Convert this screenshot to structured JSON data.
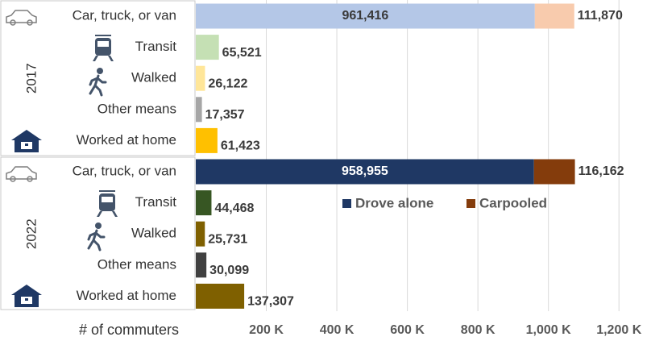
{
  "chart_data": {
    "type": "bar",
    "orientation": "horizontal",
    "stacked": true,
    "x_label": "# of commuters",
    "groups": [
      {
        "label": "2017",
        "rows": [
          0,
          1,
          2,
          3,
          4
        ]
      },
      {
        "label": "2022",
        "rows": [
          5,
          6,
          7,
          8,
          9
        ]
      }
    ],
    "categories": [
      "Car, truck, or van",
      "Transit",
      "Walked",
      "Other means",
      "Worked at home",
      "Car, truck, or van",
      "Transit",
      "Walked",
      "Other means",
      "Worked at home"
    ],
    "series": [
      {
        "name": "Drove alone",
        "color": "#1f3864",
        "colors": [
          "#b4c7e7",
          "#c5e0b4",
          "#ffe699",
          "#a6a6a6",
          "#ffc000",
          "#1f3864",
          "#375623",
          "#7f6000",
          "#404040",
          "#7f6000"
        ],
        "values": [
          961416,
          65521,
          26122,
          17357,
          61423,
          958955,
          44468,
          25731,
          30099,
          137307
        ],
        "value_labels": [
          "961,416",
          "65,521",
          "26,122",
          "17,357",
          "61,423",
          "958,955",
          "44,468",
          "25,731",
          "30,099",
          "137,307"
        ]
      },
      {
        "name": "Carpooled",
        "color": "#843c0c",
        "colors": [
          "#f8cbad",
          null,
          null,
          null,
          null,
          "#843c0c",
          null,
          null,
          null,
          null
        ],
        "values": [
          111870,
          null,
          null,
          null,
          null,
          116162,
          null,
          null,
          null,
          null
        ],
        "value_labels": [
          "111,870",
          null,
          null,
          null,
          null,
          "116,162",
          null,
          null,
          null,
          null
        ]
      }
    ],
    "xlim": [
      0,
      1300000
    ],
    "xticks": [
      {
        "value": 200000,
        "label": "200 K"
      },
      {
        "value": 400000,
        "label": "400 K"
      },
      {
        "value": 600000,
        "label": "600 K"
      },
      {
        "value": 800000,
        "label": "800 K"
      },
      {
        "value": 1000000,
        "label": "1,000 K"
      },
      {
        "value": 1200000,
        "label": "1,200 K"
      }
    ],
    "grid": true
  }
}
